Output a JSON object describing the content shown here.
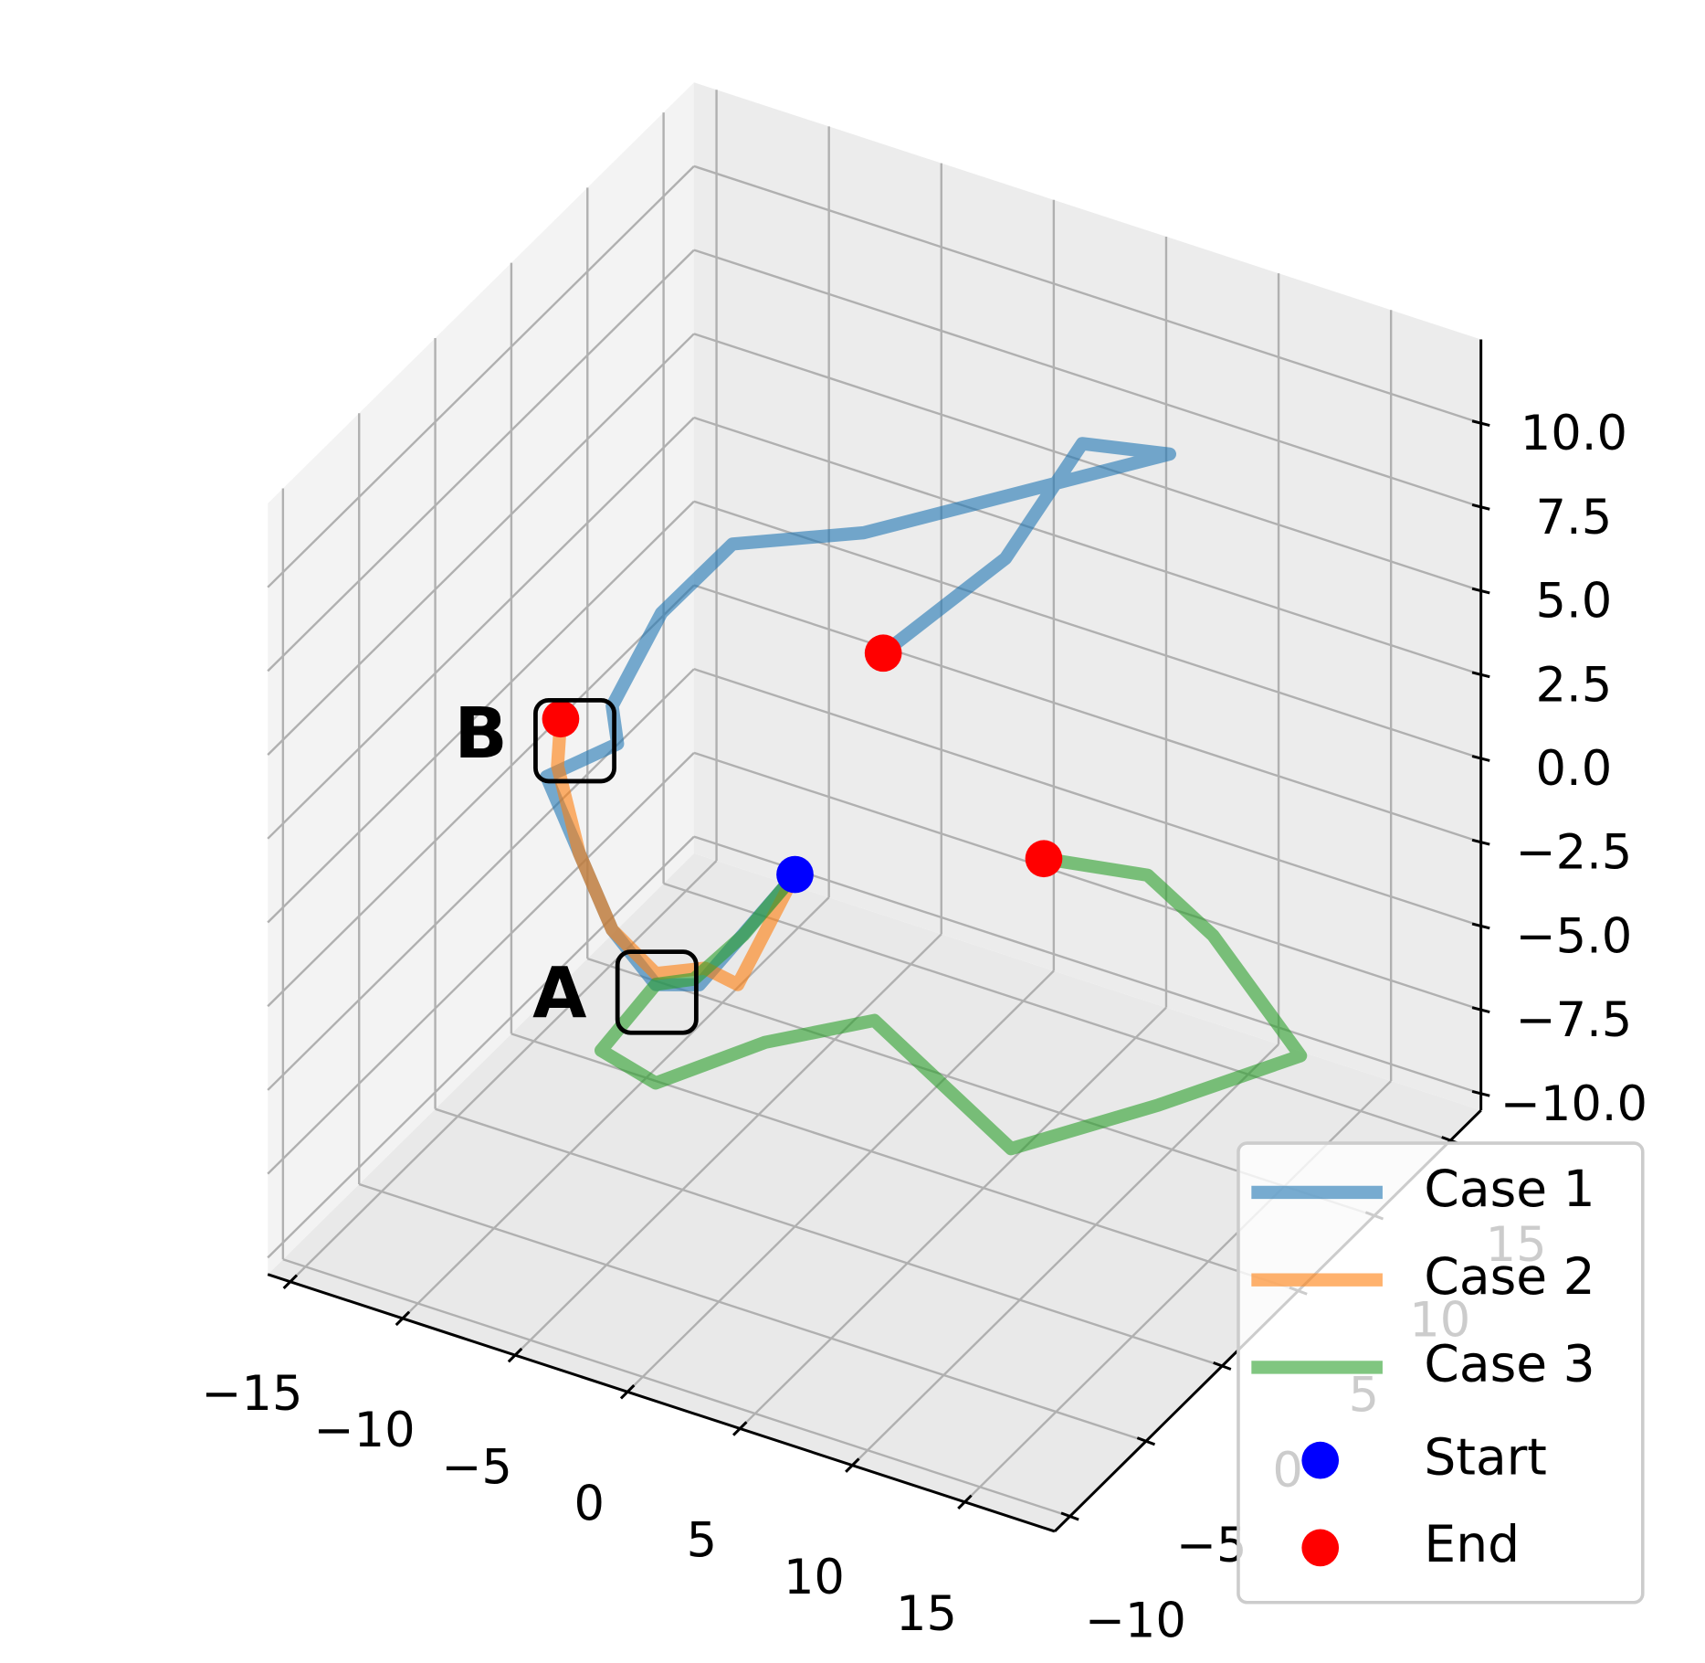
{
  "chart_data": {
    "type": "line3d",
    "xlim": [
      -16,
      19
    ],
    "ylim": [
      -11,
      17
    ],
    "zlim": [
      -10.5,
      12.5
    ],
    "xticks": [
      {
        "value": -15,
        "label": "−15"
      },
      {
        "value": -10,
        "label": "−10"
      },
      {
        "value": -5,
        "label": "−5"
      },
      0,
      5,
      10,
      15
    ],
    "yticks": [
      {
        "value": -10,
        "label": "−10"
      },
      {
        "value": -5,
        "label": "−5"
      },
      0,
      5,
      10,
      15
    ],
    "zticks": [
      {
        "value": -10,
        "label": "−10.0"
      },
      {
        "value": -7.5,
        "label": "−7.5"
      },
      {
        "value": -5,
        "label": "−5.0"
      },
      {
        "value": -2.5,
        "label": "−2.5"
      },
      {
        "value": 0,
        "label": "0.0"
      },
      2.5,
      {
        "value": 5,
        "label": "5.0"
      },
      7.5,
      {
        "value": 10,
        "label": "10.0"
      }
    ],
    "grid": true,
    "series": [
      {
        "name": "Case 1",
        "color": "#1f77b4",
        "x": [
          0,
          -4.25,
          -6.19,
          -8.13,
          -9.59,
          -11.05,
          -7.89,
          -8.13,
          -5.94,
          -2.78,
          -2.36,
          11.25,
          7.36,
          3.95,
          -1.49
        ],
        "y": [
          0,
          0,
          0,
          0,
          0,
          0,
          0,
          0,
          0,
          0,
          8,
          8,
          8,
          8,
          8
        ],
        "z": [
          0,
          -4.22,
          -4.64,
          -3.43,
          -1.47,
          0.5,
          2.17,
          3.25,
          6.5,
          9.25,
          6.09,
          11.42,
          10.88,
          6.71,
          2.69
        ]
      },
      {
        "name": "Case 2",
        "color": "#ff7f0e",
        "x": [
          0,
          -2.54,
          -4.0,
          -6.19,
          -8.13,
          -9.59,
          -10.56,
          -10.42
        ],
        "y": [
          0,
          0,
          0,
          0,
          0,
          0,
          0,
          0
        ],
        "z": [
          0,
          -3.84,
          -3.67,
          -4.31,
          -3.43,
          -1.47,
          0.93,
          2.36
        ]
      },
      {
        "name": "Case 3",
        "color": "#2ca02c",
        "x": [
          0,
          -1.94,
          -4.37,
          -5.47,
          -6.2,
          -3.27,
          -0.99,
          1.92,
          10.83,
          14.28,
          17.36,
          10.37,
          6.14,
          2.11
        ],
        "y": [
          0,
          -0.53,
          -0.18,
          -1.06,
          -3.58,
          -4.32,
          -0.5,
          2.38,
          -1.8,
          2.79,
          7.57,
          12.15,
          14.1,
          13.23
        ],
        "z": [
          0,
          -2,
          -4,
          -4,
          -5,
          -5,
          -5,
          -5,
          -5,
          -5,
          -5,
          -5,
          -5,
          -5
        ]
      }
    ],
    "markers": [
      {
        "name": "Start",
        "color": "#0000ff",
        "x": [
          0
        ],
        "y": [
          0
        ],
        "z": [
          0
        ]
      },
      {
        "name": "End",
        "color": "#ff0000",
        "x": [
          -1.49,
          -10.42,
          2.11
        ],
        "y": [
          8,
          0,
          13.23
        ],
        "z": [
          2.69,
          2.36,
          -5
        ]
      }
    ],
    "annotations": [
      "A",
      "B"
    ],
    "legend": "lower right"
  }
}
